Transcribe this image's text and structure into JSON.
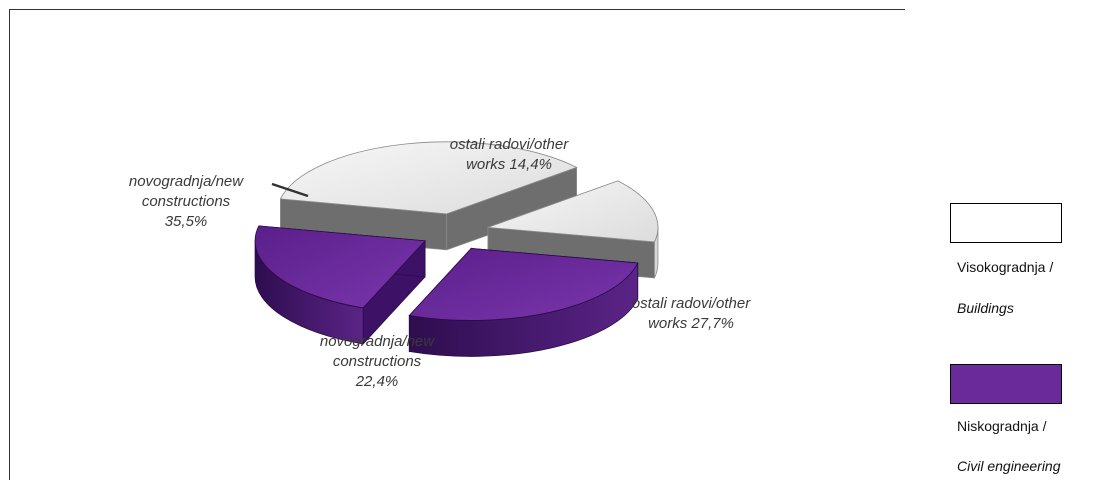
{
  "chart_data": {
    "type": "pie",
    "variant": "3d-exploded",
    "series": [
      {
        "name": "Visokogradnja / Buildings",
        "color": "#f0f0f0",
        "slices": [
          {
            "label": "novogradnja/new constructions 35,5%",
            "value": 35.5
          },
          {
            "label": "ostali radovi/other works 14,4%",
            "value": 14.4
          }
        ]
      },
      {
        "name": "Niskogradnja / Civil engineering",
        "color": "#6b2a9a",
        "slices": [
          {
            "label": "novogradnja/new constructions 22,4%",
            "value": 22.4
          },
          {
            "label": "ostali radovi/other works 27,7%",
            "value": 27.7
          }
        ]
      }
    ],
    "labels": [
      {
        "lines": [
          "novogradnja/new",
          "constructions",
          "35,5%"
        ]
      },
      {
        "lines": [
          "ostali radovi/other",
          "works 14,4%"
        ]
      },
      {
        "lines": [
          "ostali radovi/other",
          "works 27,7%"
        ]
      },
      {
        "lines": [
          "novogradnja/new",
          "constructions",
          "22,4%"
        ]
      }
    ]
  },
  "legend": {
    "items": [
      {
        "line1": "Visokogradnja /",
        "line2": "Buildings",
        "color": "#ffffff"
      },
      {
        "line1": "Niskogradnja /",
        "line2": "Civil engineering",
        "color": "#6b2a9a"
      }
    ]
  }
}
